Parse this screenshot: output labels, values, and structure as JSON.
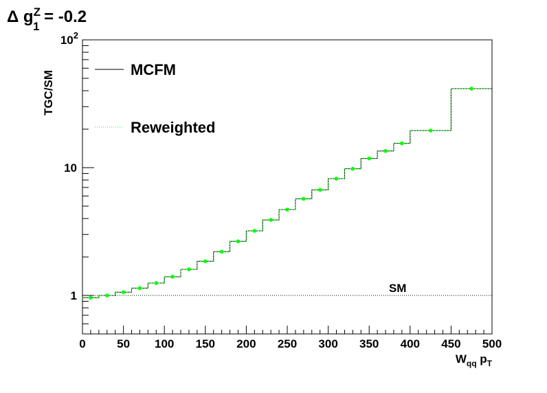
{
  "chart_data": {
    "type": "line",
    "title_main": "Δ g",
    "title_sup": "Z",
    "title_sub": "1",
    "title_value": " = -0.2",
    "ylabel": "TGC/SM",
    "xlabel_main": "W",
    "xlabel_sub1": "qq",
    "xlabel_p": " p",
    "xlabel_sub2": "T",
    "xlim": [
      0,
      500
    ],
    "ylim": [
      0.5,
      100
    ],
    "yscale": "log",
    "x_ticks": [
      "0",
      "50",
      "100",
      "150",
      "200",
      "250",
      "300",
      "350",
      "400",
      "450",
      "500"
    ],
    "y_tick_1": "1",
    "y_tick_10": "10",
    "y_tick_100_base": "10",
    "y_tick_100_exp": "2",
    "sm_label": "SM",
    "sm_value": 1,
    "bin_edges": [
      0,
      20,
      40,
      60,
      80,
      100,
      120,
      140,
      160,
      180,
      200,
      220,
      240,
      260,
      280,
      300,
      320,
      340,
      360,
      380,
      400,
      450,
      500
    ],
    "series": [
      {
        "name": "MCFM",
        "color": "#000000",
        "style": "solid",
        "values": [
          0.96,
          1.0,
          1.06,
          1.14,
          1.25,
          1.4,
          1.6,
          1.85,
          2.2,
          2.65,
          3.2,
          3.9,
          4.7,
          5.7,
          6.7,
          8.2,
          9.8,
          11.8,
          13.5,
          15.5,
          19.5,
          41.5
        ]
      },
      {
        "name": "Reweighted",
        "color": "#00ff00",
        "style": "dotted",
        "values": [
          0.96,
          1.0,
          1.06,
          1.14,
          1.25,
          1.4,
          1.6,
          1.85,
          2.2,
          2.65,
          3.2,
          3.9,
          4.7,
          5.7,
          6.7,
          8.2,
          9.8,
          11.8,
          13.5,
          15.5,
          19.5,
          41.5
        ]
      }
    ],
    "legend_position": "top-left"
  }
}
